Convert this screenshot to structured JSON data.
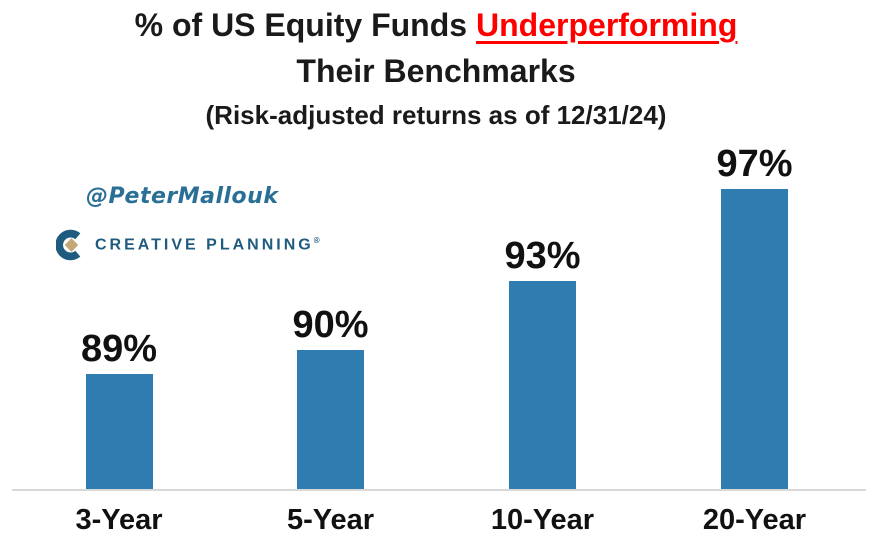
{
  "header": {
    "title_line1_part1": "% of US Equity Funds",
    "title_line1_highlight": "Underperforming",
    "title_line2": "Their Benchmarks",
    "subtitle": "(Risk-adjusted returns as of 12/31/24)"
  },
  "branding": {
    "twitter_handle": "@PeterMallouk",
    "logo_text": "CREATIVE PLANNING",
    "logo_trademark": "®",
    "logo_icon": "creative-planning-c-diamond-icon"
  },
  "colors": {
    "bar": "#2E7CB0",
    "highlight_red": "#FF0000",
    "brand_teal": "#1E5B7E",
    "logo_gold": "#C2A876",
    "handle_teal": "#2A7096",
    "axis_line": "#D9D9D9",
    "text": "#1A1A1A"
  },
  "chart_data": {
    "type": "bar",
    "categories": [
      "3-Year",
      "5-Year",
      "10-Year",
      "20-Year"
    ],
    "values": [
      89,
      90,
      93,
      97
    ],
    "value_labels": [
      "89%",
      "90%",
      "93%",
      "97%"
    ],
    "title": "% of US Equity Funds Underperforming Their Benchmarks",
    "subtitle": "(Risk-adjusted returns as of 12/31/24)",
    "xlabel": "",
    "ylabel": "",
    "ylim": [
      84,
      100
    ],
    "grid": false,
    "legend": false,
    "bar_color": "#2E7CB0",
    "value_label_position": "above-bar",
    "unit": "%"
  }
}
